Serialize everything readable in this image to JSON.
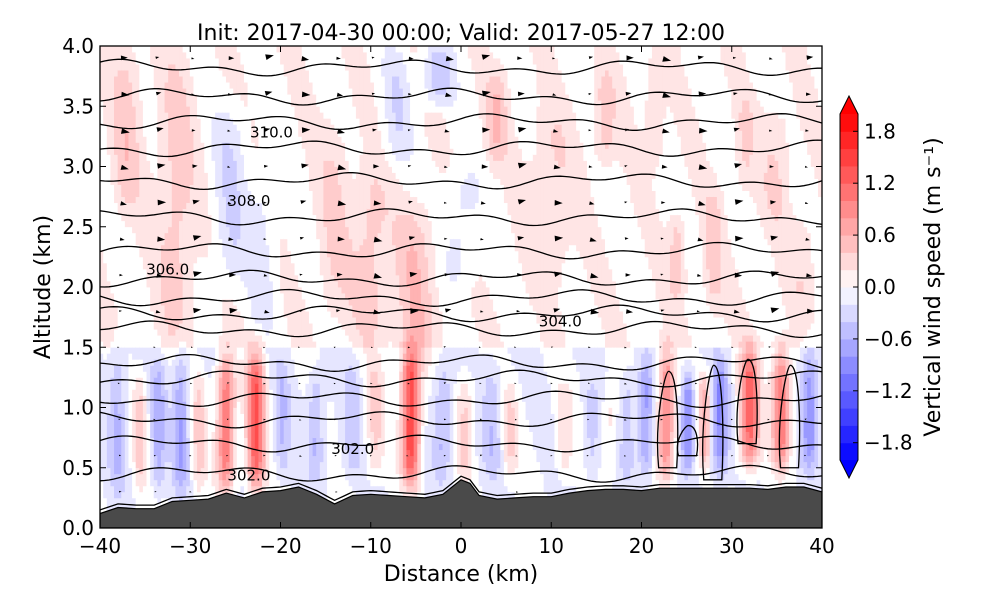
{
  "chart_data": {
    "type": "heatmap",
    "title": "Init: 2017-04-30 00:00; Valid: 2017-05-27 12:00",
    "xlabel": "Distance (km)",
    "ylabel": "Altitude (km)",
    "xlim": [
      -40,
      40
    ],
    "ylim": [
      0.0,
      4.0
    ],
    "xticks": [
      -40,
      -30,
      -20,
      -10,
      0,
      10,
      20,
      30,
      40
    ],
    "xtick_labels": [
      "−40",
      "−30",
      "−20",
      "−10",
      "0",
      "10",
      "20",
      "30",
      "40"
    ],
    "yticks": [
      0.0,
      0.5,
      1.0,
      1.5,
      2.0,
      2.5,
      3.0,
      3.5,
      4.0
    ],
    "ytick_labels": [
      "0.0",
      "0.5",
      "1.0",
      "1.5",
      "2.0",
      "2.5",
      "3.0",
      "3.5",
      "4.0"
    ],
    "colorbar": {
      "label": "Vertical wind speed (m s⁻¹)",
      "range": [
        -2.0,
        2.0
      ],
      "ticks": [
        1.8,
        1.2,
        0.6,
        0.0,
        -0.6,
        -1.2,
        -1.8
      ],
      "tick_labels": [
        "1.8",
        "1.2",
        "0.6",
        "0.0",
        "−0.6",
        "−1.2",
        "−1.8"
      ],
      "colormap": "bwr",
      "extend": "both"
    },
    "contour_labels": [
      {
        "text": "310.0",
        "x": -21,
        "y": 3.28
      },
      {
        "text": "308.0",
        "x": -23.5,
        "y": 2.71
      },
      {
        "text": "306.0",
        "x": -32.5,
        "y": 2.14
      },
      {
        "text": "304.0",
        "x": 11,
        "y": 1.71
      },
      {
        "text": "302.0",
        "x": -23.5,
        "y": 0.43
      },
      {
        "text": "302.0",
        "x": -12,
        "y": 0.65
      }
    ],
    "isentrope_levels": [
      0.13,
      0.45,
      0.7,
      0.9,
      1.07,
      1.24,
      1.37,
      1.65,
      1.78,
      1.91,
      2.07,
      2.3,
      2.58,
      2.88,
      3.15,
      3.37,
      3.58,
      3.82
    ],
    "terrain": {
      "x": [
        -40,
        -38,
        -36,
        -34,
        -32,
        -30,
        -28,
        -26,
        -24,
        -22,
        -20,
        -18,
        -16,
        -14,
        -12,
        -10,
        -8,
        -6,
        -4,
        -2,
        0,
        1,
        2,
        4,
        6,
        8,
        10,
        12,
        14,
        16,
        18,
        20,
        22,
        24,
        26,
        28,
        30,
        32,
        34,
        36,
        38,
        40
      ],
      "y": [
        0.12,
        0.17,
        0.16,
        0.16,
        0.22,
        0.23,
        0.24,
        0.29,
        0.25,
        0.3,
        0.31,
        0.34,
        0.28,
        0.2,
        0.27,
        0.28,
        0.27,
        0.26,
        0.25,
        0.28,
        0.4,
        0.37,
        0.27,
        0.24,
        0.25,
        0.26,
        0.26,
        0.29,
        0.31,
        0.32,
        0.32,
        0.31,
        0.33,
        0.33,
        0.33,
        0.33,
        0.33,
        0.33,
        0.32,
        0.34,
        0.34,
        0.3
      ],
      "color": "#4a4a4a"
    },
    "vertical_wind_bands": [
      {
        "x": -38,
        "w": 0.9,
        "amp": -0.45,
        "y0": 0.3,
        "y1": 1.5
      },
      {
        "x": -35.5,
        "w": 0.7,
        "amp": 0.45,
        "y0": 0.3,
        "y1": 1.3
      },
      {
        "x": -33.5,
        "w": 0.8,
        "amp": -0.5,
        "y0": 0.3,
        "y1": 1.4
      },
      {
        "x": -31,
        "w": 0.9,
        "amp": -0.6,
        "y0": 0.3,
        "y1": 1.5
      },
      {
        "x": -29,
        "w": 0.8,
        "amp": 0.45,
        "y0": 0.3,
        "y1": 1.3
      },
      {
        "x": -26,
        "w": 1.0,
        "amp": 1.2,
        "y0": 0.3,
        "y1": 1.45
      },
      {
        "x": -22.7,
        "w": 1.0,
        "amp": 1.4,
        "y0": 0.3,
        "y1": 1.5
      },
      {
        "x": -19.8,
        "w": 0.8,
        "amp": -0.4,
        "y0": 0.4,
        "y1": 1.4
      },
      {
        "x": -16,
        "w": 0.9,
        "amp": -0.45,
        "y0": 0.4,
        "y1": 1.3
      },
      {
        "x": -12,
        "w": 1.0,
        "amp": -0.3,
        "y0": 0.4,
        "y1": 1.4
      },
      {
        "x": -9.5,
        "w": 1.0,
        "amp": 0.45,
        "y0": 0.4,
        "y1": 1.4
      },
      {
        "x": -5.5,
        "w": 1.0,
        "amp": 1.6,
        "y0": 0.35,
        "y1": 1.5
      },
      {
        "x": -2,
        "w": 1.0,
        "amp": -0.45,
        "y0": 0.4,
        "y1": 1.4
      },
      {
        "x": 0.5,
        "w": 0.9,
        "amp": 0.45,
        "y0": 0.4,
        "y1": 1.3
      },
      {
        "x": 3.5,
        "w": 1.0,
        "amp": -0.35,
        "y0": 0.4,
        "y1": 1.4
      },
      {
        "x": 5.5,
        "w": 0.8,
        "amp": 0.4,
        "y0": 0.4,
        "y1": 1.2
      },
      {
        "x": 11.5,
        "w": 0.9,
        "amp": 0.35,
        "y0": 0.4,
        "y1": 1.2
      },
      {
        "x": 14.5,
        "w": 0.8,
        "amp": -0.3,
        "y0": 0.4,
        "y1": 1.2
      },
      {
        "x": 16.5,
        "w": 0.8,
        "amp": 0.3,
        "y0": 0.4,
        "y1": 1.2
      },
      {
        "x": 18.5,
        "w": 0.8,
        "amp": -0.35,
        "y0": 0.4,
        "y1": 1.3
      },
      {
        "x": 20.5,
        "w": 0.8,
        "amp": -0.65,
        "y0": 0.4,
        "y1": 1.4
      },
      {
        "x": 22.8,
        "w": 0.9,
        "amp": 1.1,
        "y0": 0.4,
        "y1": 1.5
      },
      {
        "x": 25.2,
        "w": 0.7,
        "amp": -0.85,
        "y0": 0.5,
        "y1": 1.3
      },
      {
        "x": 27,
        "w": 0.7,
        "amp": 0.7,
        "y0": 0.5,
        "y1": 1.3
      },
      {
        "x": 28.7,
        "w": 0.9,
        "amp": -0.8,
        "y0": 0.4,
        "y1": 1.4
      },
      {
        "x": 32,
        "w": 1.1,
        "amp": 1.3,
        "y0": 0.5,
        "y1": 1.5
      },
      {
        "x": 35.5,
        "w": 1.0,
        "amp": 1.2,
        "y0": 0.5,
        "y1": 1.5
      },
      {
        "x": 38.7,
        "w": 0.9,
        "amp": -0.75,
        "y0": 0.5,
        "y1": 1.5
      },
      {
        "x": -37,
        "w": 1.6,
        "amp": 0.35,
        "y0": 2.6,
        "y1": 4.0
      },
      {
        "x": -31.5,
        "w": 2.0,
        "amp": 0.35,
        "y0": 1.5,
        "y1": 3.9
      },
      {
        "x": -25.5,
        "w": 1.8,
        "amp": -0.35,
        "y0": 2.0,
        "y1": 3.5
      },
      {
        "x": -22,
        "w": 1.6,
        "amp": -0.25,
        "y0": 1.6,
        "y1": 3.0
      },
      {
        "x": -14,
        "w": 1.8,
        "amp": 0.25,
        "y0": 1.7,
        "y1": 3.4
      },
      {
        "x": -10,
        "w": 2.0,
        "amp": 0.35,
        "y0": 1.5,
        "y1": 3.0
      },
      {
        "x": -7,
        "w": 1.5,
        "amp": -0.3,
        "y0": 3.0,
        "y1": 4.0
      },
      {
        "x": -5,
        "w": 2.2,
        "amp": 0.4,
        "y0": 1.3,
        "y1": 2.7
      },
      {
        "x": -2.5,
        "w": 1.6,
        "amp": -0.5,
        "y0": 3.5,
        "y1": 4.0
      },
      {
        "x": 0,
        "w": 2.0,
        "amp": -0.25,
        "y0": 2.0,
        "y1": 3.0
      },
      {
        "x": 4,
        "w": 1.2,
        "amp": 0.4,
        "y0": 3.0,
        "y1": 3.8
      },
      {
        "x": 10,
        "w": 2.4,
        "amp": 0.25,
        "y0": 2.0,
        "y1": 3.5
      },
      {
        "x": 16,
        "w": 1.2,
        "amp": 0.35,
        "y0": 3.0,
        "y1": 3.8
      },
      {
        "x": 21.5,
        "w": 1.0,
        "amp": 0.3,
        "y0": 3.0,
        "y1": 3.9
      },
      {
        "x": 24,
        "w": 0.9,
        "amp": 0.4,
        "y0": 1.9,
        "y1": 2.6
      },
      {
        "x": 28,
        "w": 1.0,
        "amp": 0.35,
        "y0": 1.8,
        "y1": 2.8
      },
      {
        "x": 31.5,
        "w": 1.0,
        "amp": 0.25,
        "y0": 2.8,
        "y1": 3.6
      },
      {
        "x": 35,
        "w": 1.6,
        "amp": 0.25,
        "y0": 2.5,
        "y1": 3.5
      },
      {
        "x": 38,
        "w": 1.5,
        "amp": 0.2,
        "y0": 1.8,
        "y1": 2.6
      }
    ]
  }
}
